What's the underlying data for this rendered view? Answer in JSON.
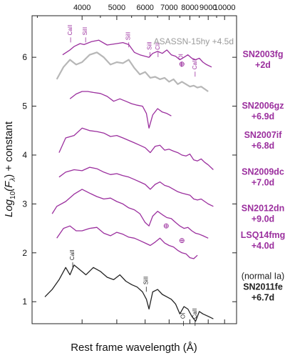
{
  "chart_data": {
    "type": "line",
    "xlabel": "Rest frame wavelength (Å)",
    "ylabel_parts": [
      "Log",
      "10",
      "(F",
      "λ",
      ") + constant"
    ],
    "x_scale": "log",
    "xlim": [
      2900,
      10800
    ],
    "ylim": [
      0.55,
      6.85
    ],
    "x_ticks_top": [
      "4000",
      "5000",
      "6000",
      "7000",
      "8000",
      "9000",
      "10000"
    ],
    "x_ticks_top_values": [
      4000,
      5000,
      6000,
      7000,
      8000,
      9000,
      10000
    ],
    "y_ticks": [
      "1",
      "2",
      "3",
      "4",
      "5",
      "6"
    ],
    "y_tick_values": [
      1,
      2,
      3,
      4,
      5,
      6
    ],
    "grey_label": "ASASSN-15hy +4.5d",
    "colors": {
      "purple": "#9b2f9e",
      "grey": "#b7b7b7",
      "black": "#222222"
    },
    "series": [
      {
        "name": "SN2003fg",
        "phase": "+2d",
        "color": "purple",
        "offset": 5.95,
        "x": [
          3530,
          3700,
          3800,
          3950,
          4050,
          4250,
          4450,
          4700,
          5000,
          5200,
          5400,
          5600,
          5800,
          6000,
          6150,
          6300,
          6500,
          6700,
          6900,
          7100,
          7300,
          7500,
          7700,
          7900,
          8100,
          8300,
          8500,
          8700,
          8900,
          9200
        ],
        "y": [
          6.05,
          6.15,
          6.22,
          6.28,
          6.26,
          6.32,
          6.35,
          6.25,
          6.28,
          6.3,
          6.26,
          6.1,
          6.05,
          6.02,
          6.0,
          6.08,
          6.12,
          6.08,
          6.15,
          6.05,
          6.02,
          5.95,
          6.0,
          6.05,
          5.98,
          5.95,
          5.98,
          5.9,
          5.85,
          5.8
        ]
      },
      {
        "name": "ASASSN-15hy",
        "phase": "+4.5d",
        "color": "grey",
        "offset": 5.95,
        "x": [
          3400,
          3550,
          3700,
          3850,
          4000,
          4200,
          4400,
          4600,
          4800,
          5000,
          5200,
          5400,
          5600,
          5800,
          6000,
          6200,
          6400,
          6600,
          6800,
          7000,
          7200,
          7400,
          7600,
          7800,
          8000,
          8200,
          8400,
          8600,
          8800,
          9000
        ],
        "y": [
          5.55,
          5.8,
          5.95,
          5.85,
          5.9,
          6.05,
          6.1,
          6.0,
          5.85,
          5.9,
          5.88,
          5.95,
          5.78,
          5.65,
          5.7,
          5.58,
          5.6,
          5.55,
          5.58,
          5.5,
          5.55,
          5.45,
          5.5,
          5.45,
          5.4,
          5.42,
          5.38,
          5.4,
          5.35,
          5.3
        ]
      },
      {
        "name": "SN2006gz",
        "phase": "+6.9d",
        "color": "purple",
        "offset": 4.9,
        "x": [
          3700,
          3850,
          4000,
          4150,
          4300,
          4500,
          4700,
          4900,
          5100,
          5300,
          5500,
          5700,
          5900,
          6050,
          6150,
          6300,
          6500,
          6700,
          6900,
          7100
        ],
        "y": [
          5.15,
          5.25,
          5.3,
          5.3,
          5.28,
          5.26,
          5.2,
          5.1,
          5.15,
          5.1,
          5.05,
          5.02,
          5.0,
          4.85,
          4.55,
          4.82,
          4.95,
          4.88,
          4.85,
          4.8
        ]
      },
      {
        "name": "SN2007if",
        "phase": "+6.8d",
        "color": "purple",
        "offset": 4.3,
        "x": [
          3450,
          3600,
          3800,
          4000,
          4200,
          4400,
          4600,
          4800,
          5000,
          5200,
          5400,
          5600,
          5800,
          6000,
          6200,
          6400,
          6600,
          6800,
          7000,
          7200,
          7400,
          7600,
          7800,
          8000,
          8200,
          8400,
          8600,
          8800,
          9000,
          9300
        ],
        "y": [
          4.05,
          4.35,
          4.4,
          4.55,
          4.5,
          4.48,
          4.45,
          4.38,
          4.4,
          4.35,
          4.3,
          4.25,
          4.2,
          4.15,
          4.05,
          4.18,
          4.2,
          4.1,
          4.12,
          4.08,
          4.05,
          4.0,
          3.98,
          4.02,
          3.9,
          3.88,
          3.92,
          3.85,
          3.8,
          3.7
        ]
      },
      {
        "name": "SN2009dc",
        "phase": "+7.0d",
        "color": "purple",
        "offset": 3.55,
        "x": [
          3450,
          3600,
          3800,
          4000,
          4200,
          4400,
          4600,
          4800,
          5000,
          5200,
          5400,
          5600,
          5800,
          6000,
          6200,
          6400,
          6600,
          6800,
          7000,
          7200,
          7400,
          7600,
          7800,
          8000,
          8200,
          8400,
          8600,
          8800,
          9000,
          9300
        ],
        "y": [
          3.55,
          3.65,
          3.7,
          3.68,
          3.75,
          3.72,
          3.65,
          3.6,
          3.62,
          3.58,
          3.55,
          3.5,
          3.45,
          3.4,
          3.3,
          3.4,
          3.45,
          3.38,
          3.35,
          3.3,
          3.25,
          3.22,
          3.2,
          3.18,
          3.1,
          3.08,
          3.1,
          3.05,
          3.0,
          2.95
        ]
      },
      {
        "name": "SN2012dn",
        "phase": "+9.0d",
        "color": "purple",
        "offset": 2.8,
        "x": [
          3300,
          3400,
          3600,
          3800,
          4000,
          4200,
          4400,
          4600,
          4800,
          5000,
          5200,
          5400,
          5600,
          5800,
          6000,
          6150,
          6300,
          6500,
          6700,
          6900,
          7100,
          7300,
          7500,
          7700,
          7900,
          8100,
          8300,
          8500,
          8700,
          9000
        ],
        "y": [
          2.8,
          2.95,
          3.05,
          3.2,
          3.3,
          3.22,
          3.15,
          3.1,
          3.12,
          3.05,
          3.0,
          2.92,
          2.88,
          2.8,
          2.62,
          2.55,
          2.75,
          2.85,
          2.78,
          2.72,
          2.7,
          2.62,
          2.55,
          2.5,
          2.52,
          2.45,
          2.4,
          2.38,
          2.35,
          2.3
        ]
      },
      {
        "name": "LSQ14fmg",
        "phase": "+4.0d",
        "color": "purple",
        "offset": 2.25,
        "x": [
          3400,
          3550,
          3700,
          3850,
          4000,
          4200,
          4400,
          4600,
          4800,
          5000,
          5200,
          5400,
          5600,
          5800,
          6000,
          6200,
          6400,
          6600,
          6800,
          7000,
          7200,
          7400,
          7600,
          7800,
          8000,
          8200,
          8400
        ],
        "y": [
          2.3,
          2.5,
          2.55,
          2.45,
          2.45,
          2.5,
          2.52,
          2.4,
          2.35,
          2.42,
          2.38,
          2.32,
          2.3,
          2.25,
          2.2,
          2.15,
          2.22,
          2.3,
          2.2,
          2.15,
          2.12,
          2.05,
          2.0,
          1.98,
          1.9,
          1.88,
          1.95
        ]
      },
      {
        "name": "SN2011fe",
        "phase": "+6.7d",
        "note": "(normal Ia)",
        "color": "black",
        "offset": 1.3,
        "x": [
          3150,
          3300,
          3450,
          3600,
          3700,
          3800,
          3950,
          4100,
          4300,
          4500,
          4700,
          4900,
          5100,
          5300,
          5500,
          5700,
          5900,
          6050,
          6150,
          6300,
          6500,
          6700,
          6900,
          7100,
          7300,
          7500,
          7700,
          7900,
          8100,
          8300,
          8500,
          8700,
          9000,
          9300
        ],
        "y": [
          1.1,
          1.25,
          1.45,
          1.7,
          1.55,
          1.75,
          1.65,
          1.55,
          1.7,
          1.62,
          1.5,
          1.45,
          1.55,
          1.42,
          1.35,
          1.3,
          1.2,
          1.05,
          0.85,
          1.2,
          1.25,
          1.15,
          1.1,
          1.05,
          0.95,
          0.75,
          0.9,
          0.85,
          0.7,
          0.6,
          0.8,
          0.75,
          0.7,
          0.65
        ]
      }
    ],
    "annotations": [
      {
        "label": "CaII",
        "x": 3750,
        "y": 6.45,
        "color": "purple"
      },
      {
        "label": "SiII",
        "x": 4130,
        "y": 6.45,
        "color": "purple"
      },
      {
        "label": "SiII",
        "x": 5450,
        "y": 6.35,
        "color": "purple"
      },
      {
        "label": "SiII",
        "x": 6250,
        "y": 6.15,
        "color": "purple"
      },
      {
        "label": "CII",
        "x": 6580,
        "y": 6.15,
        "color": "purple"
      },
      {
        "label": "OI",
        "x": 7650,
        "y": 5.95,
        "color": "purple"
      },
      {
        "label": "CaII",
        "x": 8350,
        "y": 5.75,
        "color": "purple"
      },
      {
        "label": "CaII",
        "x": 3800,
        "y": 1.85,
        "color": "black"
      },
      {
        "label": "SiII",
        "x": 6100,
        "y": 1.35,
        "color": "black"
      },
      {
        "label": "OI",
        "x": 7750,
        "y": 0.65,
        "color": "black"
      },
      {
        "label": "CaII",
        "x": 8350,
        "y": 0.65,
        "color": "black"
      }
    ],
    "telluric_markers": [
      {
        "x": 7600,
        "y": 5.86
      },
      {
        "x": 6870,
        "y": 2.55
      },
      {
        "x": 7600,
        "y": 2.25
      }
    ]
  }
}
